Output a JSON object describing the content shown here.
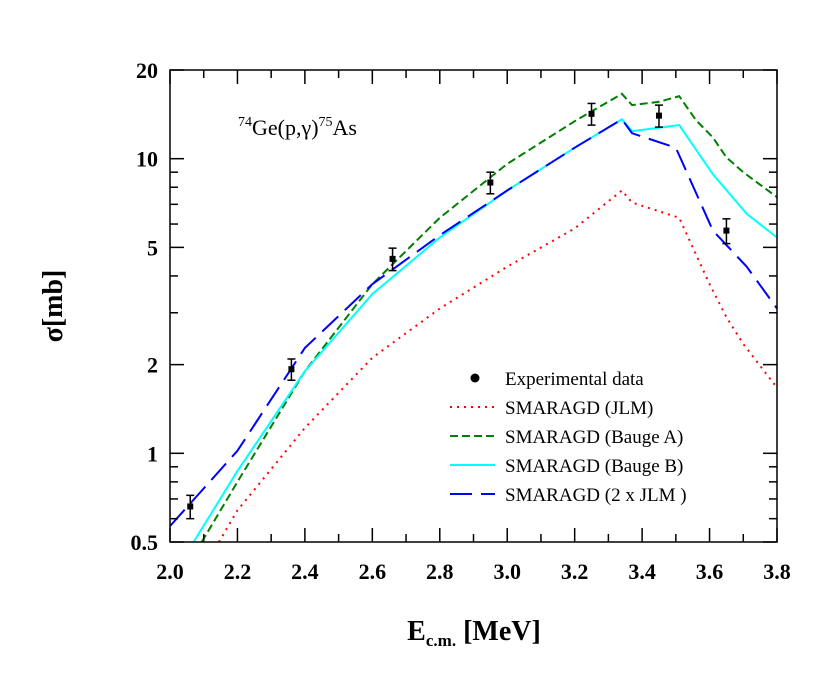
{
  "chart_data": {
    "type": "line",
    "annotation": {
      "pre_sup": "74",
      "mid": "Ge(p,γ)",
      "post_sup": "75",
      "end": "As"
    },
    "xlabel": {
      "main": "E",
      "sub": "c.m.",
      "unit": " [MeV]"
    },
    "ylabel": "σ[mb]",
    "xlim": [
      2.0,
      3.8
    ],
    "ylim": [
      0.5,
      20
    ],
    "yscale": "log",
    "grid": false,
    "legend_placement": "bottom-right",
    "x_ticks": [
      "2.0",
      "2.2",
      "2.4",
      "2.6",
      "2.8",
      "3.0",
      "3.2",
      "3.4",
      "3.6",
      "3.8"
    ],
    "y_ticks": [
      "0.5",
      "1",
      "2",
      "5",
      "10",
      "20"
    ],
    "experimental": {
      "name": "Experimental data",
      "color": "#000000",
      "points": [
        {
          "x": 2.06,
          "y": 0.66,
          "err": 0.06
        },
        {
          "x": 2.36,
          "y": 1.93,
          "err": 0.16
        },
        {
          "x": 2.66,
          "y": 4.57,
          "err": 0.4
        },
        {
          "x": 2.95,
          "y": 8.3,
          "err": 0.7
        },
        {
          "x": 3.25,
          "y": 14.2,
          "err": 1.2
        },
        {
          "x": 3.45,
          "y": 14.0,
          "err": 1.2
        },
        {
          "x": 3.65,
          "y": 5.7,
          "err": 0.55
        }
      ]
    },
    "series": [
      {
        "name": "SMARAGD (JLM)",
        "color": "#ff0000",
        "dash": "dotted",
        "x": [
          2.145,
          2.2,
          2.4,
          2.6,
          2.8,
          3.0,
          3.2,
          3.34,
          3.37,
          3.51,
          3.6,
          3.65,
          3.7,
          3.8
        ],
        "y": [
          0.5,
          0.64,
          1.22,
          2.11,
          3.1,
          4.3,
          5.8,
          7.8,
          7.1,
          6.3,
          3.75,
          2.9,
          2.35,
          1.67
        ]
      },
      {
        "name": "SMARAGD (Bauge A)",
        "color": "#008000",
        "dash": "dashed",
        "x": [
          2.094,
          2.2,
          2.4,
          2.6,
          2.8,
          3.0,
          3.2,
          3.34,
          3.37,
          3.45,
          3.51,
          3.56,
          3.61,
          3.65,
          3.7,
          3.8
        ],
        "y": [
          0.5,
          0.8,
          1.9,
          3.75,
          6.3,
          9.6,
          13.4,
          16.6,
          15.2,
          15.6,
          16.3,
          13.5,
          11.8,
          10.1,
          9.0,
          7.4
        ]
      },
      {
        "name": "SMARAGD (Bauge B)",
        "color": "#00ffff",
        "dash": "solid",
        "x": [
          2.07,
          2.2,
          2.4,
          2.6,
          2.8,
          3.0,
          3.2,
          3.34,
          3.37,
          3.51,
          3.61,
          3.71,
          3.8
        ],
        "y": [
          0.5,
          0.87,
          1.9,
          3.47,
          5.4,
          7.8,
          10.9,
          13.6,
          12.4,
          13.0,
          8.85,
          6.5,
          5.4
        ]
      },
      {
        "name": "SMARAGD (2 x JLM )",
        "color": "#0000ff",
        "dash": "longdash",
        "x": [
          2.0,
          2.2,
          2.4,
          2.6,
          2.8,
          3.0,
          3.2,
          3.34,
          3.37,
          3.5,
          3.61,
          3.71,
          3.8
        ],
        "y": [
          0.566,
          1.02,
          2.28,
          3.75,
          5.5,
          7.8,
          10.9,
          13.6,
          12.2,
          10.9,
          5.7,
          4.3,
          3.1
        ]
      }
    ]
  }
}
